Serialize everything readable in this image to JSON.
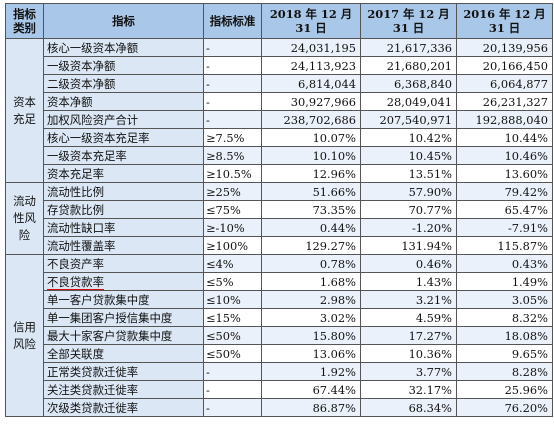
{
  "headers": {
    "category": "指标类别",
    "indicator": "指标",
    "standard": "指标标准",
    "y2018": "2018 年 12 月 31 日",
    "y2017": "2017 年 12 月 31 日",
    "y2016": "2016 年 12 月 31 日"
  },
  "groups": [
    {
      "category": "资本充足",
      "rows": [
        {
          "indicator": "核心一级资本净额",
          "standard": "-",
          "v2018": "24,031,195",
          "v2017": "21,617,336",
          "v2016": "20,139,956"
        },
        {
          "indicator": "一级资本净额",
          "standard": "-",
          "v2018": "24,113,923",
          "v2017": "21,680,201",
          "v2016": "20,166,450"
        },
        {
          "indicator": "二级资本净额",
          "standard": "-",
          "v2018": "6,814,044",
          "v2017": "6,368,840",
          "v2016": "6,064,877"
        },
        {
          "indicator": "资本净额",
          "standard": "-",
          "v2018": "30,927,966",
          "v2017": "28,049,041",
          "v2016": "26,231,327"
        },
        {
          "indicator": "加权风险资产合计",
          "standard": "-",
          "v2018": "238,702,686",
          "v2017": "207,540,971",
          "v2016": "192,888,040"
        },
        {
          "indicator": "核心一级资本充足率",
          "standard": "≥7.5%",
          "v2018": "10.07%",
          "v2017": "10.42%",
          "v2016": "10.44%"
        },
        {
          "indicator": "一级资本充足率",
          "standard": "≥8.5%",
          "v2018": "10.10%",
          "v2017": "10.45%",
          "v2016": "10.46%"
        },
        {
          "indicator": "资本充足率",
          "standard": "≥10.5%",
          "v2018": "12.96%",
          "v2017": "13.51%",
          "v2016": "13.60%"
        }
      ]
    },
    {
      "category": "流动性风险",
      "rows": [
        {
          "indicator": "流动性比例",
          "standard": "≥25%",
          "v2018": "51.66%",
          "v2017": "57.90%",
          "v2016": "79.42%"
        },
        {
          "indicator": "存贷款比例",
          "standard": "≤75%",
          "v2018": "73.35%",
          "v2017": "70.77%",
          "v2016": "65.47%"
        },
        {
          "indicator": "流动性缺口率",
          "standard": "≥-10%",
          "v2018": "0.44%",
          "v2017": "-1.20%",
          "v2016": "-7.91%"
        },
        {
          "indicator": "流动性覆盖率",
          "standard": "≥100%",
          "v2018": "129.27%",
          "v2017": "131.94%",
          "v2016": "115.87%"
        }
      ]
    },
    {
      "category": "信用风险",
      "rows": [
        {
          "indicator": "不良资产率",
          "standard": "≤4%",
          "v2018": "0.78%",
          "v2017": "0.46%",
          "v2016": "0.43%"
        },
        {
          "indicator": "不良贷款率",
          "standard": "≤5%",
          "v2018": "1.68%",
          "v2017": "1.43%",
          "v2016": "1.49%"
        },
        {
          "indicator": "单一客户贷款集中度",
          "standard": "≤10%",
          "v2018": "2.98%",
          "v2017": "3.21%",
          "v2016": "3.05%"
        },
        {
          "indicator": "单一集团客户授信集中度",
          "standard": "≤15%",
          "v2018": "3.02%",
          "v2017": "4.59%",
          "v2016": "8.32%"
        },
        {
          "indicator": "最大十家客户贷款集中度",
          "standard": "≤50%",
          "v2018": "15.80%",
          "v2017": "17.27%",
          "v2016": "18.08%"
        },
        {
          "indicator": "全部关联度",
          "standard": "≤50%",
          "v2018": "13.06%",
          "v2017": "10.36%",
          "v2016": "9.65%"
        },
        {
          "indicator": "正常类贷款迁徙率",
          "standard": "-",
          "v2018": "1.92%",
          "v2017": "3.77%",
          "v2016": "8.28%"
        },
        {
          "indicator": "关注类贷款迁徙率",
          "standard": "-",
          "v2018": "67.44%",
          "v2017": "32.17%",
          "v2016": "25.96%"
        },
        {
          "indicator": "次级类贷款迁徙率",
          "standard": "-",
          "v2018": "86.87%",
          "v2017": "68.34%",
          "v2016": "76.20%"
        }
      ]
    }
  ]
}
